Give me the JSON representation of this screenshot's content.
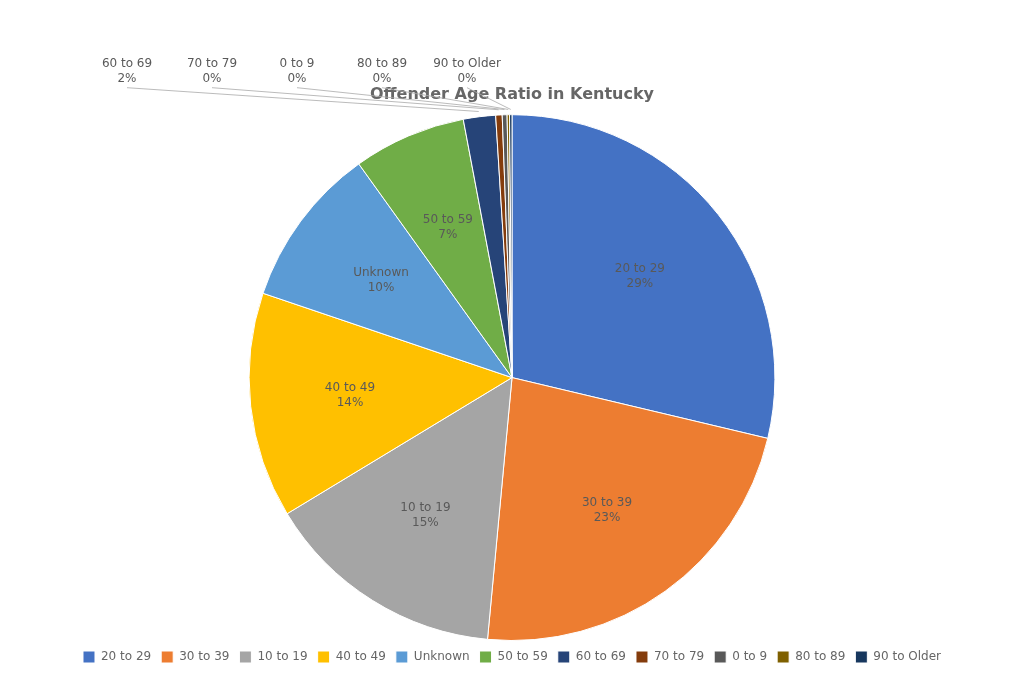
{
  "chart_data": {
    "type": "pie",
    "title": "Offender Age Ratio in Kentucky",
    "categories": [
      "20 to 29",
      "30 to 39",
      "10 to 19",
      "40 to 49",
      "Unknown",
      "50 to 59",
      "60 to 69",
      "70 to 79",
      "0 to 9",
      "80 to 89",
      "90 to Older"
    ],
    "values": [
      29,
      23,
      15,
      14,
      10,
      7,
      2,
      0.4,
      0.3,
      0.15,
      0.15
    ],
    "value_labels": [
      "29%",
      "23%",
      "15%",
      "14%",
      "10%",
      "7%",
      "2%",
      "0%",
      "0%",
      "0%",
      "0%"
    ],
    "colors": [
      "#4472C4",
      "#ED7D31",
      "#A5A5A5",
      "#FFC000",
      "#5B9BD5",
      "#70AD47",
      "#264478",
      "#843C0C",
      "#595959",
      "#7F6000",
      "#17375E"
    ],
    "data_labels": true,
    "legend": "bottom"
  }
}
